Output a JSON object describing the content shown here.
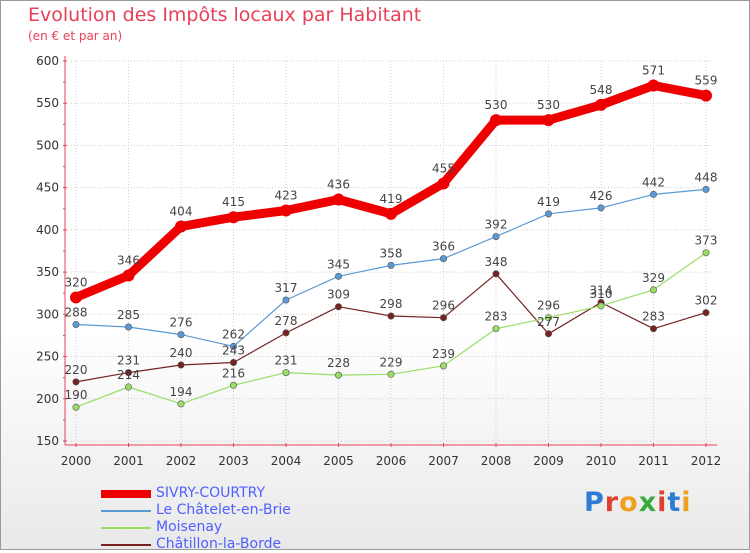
{
  "header": {
    "title": "Evolution des Impôts locaux par Habitant",
    "subtitle": "(en € et par an)"
  },
  "logo": {
    "text": "Proxiti"
  },
  "colors": {
    "title": "#e8405b",
    "axis": "#e8405b",
    "grid": "#d0d0d0",
    "tick_text": "#333333",
    "legend_text": "#5060ff"
  },
  "chart_data": {
    "type": "line",
    "title": "Evolution des Impôts locaux par Habitant",
    "subtitle": "(en € et par an)",
    "xlabel": "",
    "ylabel": "",
    "x": [
      "2000",
      "2001",
      "2002",
      "2003",
      "2004",
      "2005",
      "2006",
      "2007",
      "2008",
      "2009",
      "2010",
      "2011",
      "2012"
    ],
    "ylim": [
      150,
      600
    ],
    "yticks": [
      150,
      200,
      250,
      300,
      350,
      400,
      450,
      500,
      550,
      600
    ],
    "grid": true,
    "legend_position": "bottom-left",
    "series": [
      {
        "name": "SIVRY-COURTRY",
        "color": "#ee0000",
        "values": [
          320,
          346,
          404,
          415,
          423,
          436,
          419,
          455,
          530,
          530,
          548,
          571,
          559
        ]
      },
      {
        "name": "Le Châtelet-en-Brie",
        "color": "#5b9bd5",
        "values": [
          288,
          285,
          276,
          262,
          317,
          345,
          358,
          366,
          392,
          419,
          426,
          442,
          448
        ]
      },
      {
        "name": "Moisenay",
        "color": "#99dd66",
        "values": [
          190,
          214,
          194,
          216,
          231,
          228,
          229,
          239,
          283,
          296,
          310,
          329,
          373
        ]
      },
      {
        "name": "Châtillon-la-Borde",
        "color": "#772222",
        "values": [
          220,
          231,
          240,
          243,
          278,
          309,
          298,
          296,
          348,
          277,
          314,
          283,
          302
        ]
      }
    ]
  }
}
